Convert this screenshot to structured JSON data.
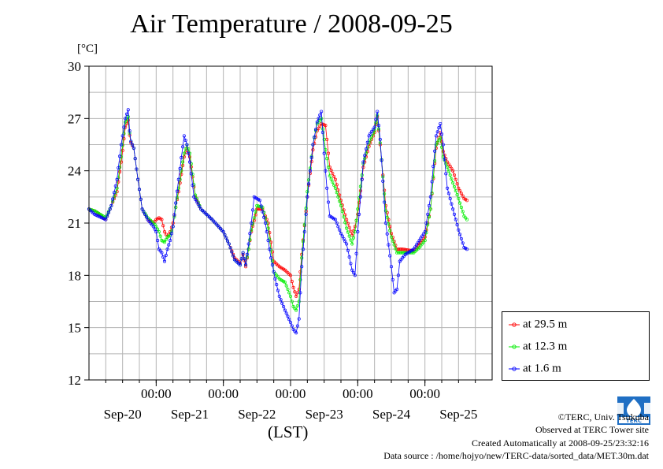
{
  "title": "Air Temperature / 2008-09-25",
  "y_unit": "[°C]",
  "x_unit": "(LST)",
  "legend": [
    {
      "label": "at 29.5 m",
      "color": "#ff0000"
    },
    {
      "label": "at 12.3 m",
      "color": "#00ee00"
    },
    {
      "label": "at 1.6 m",
      "color": "#0000ff"
    }
  ],
  "credits": {
    "copyright": "©TERC, Univ. Tsukuba",
    "observed": "Observed at TERC Tower site",
    "created": "Created Automatically at 2008-09-25/23:32:16",
    "source": "Data source : /home/hojyo/new/TERC-data/sorted_data/MET.30m.dat"
  },
  "logo_text": "TERC",
  "chart_data": {
    "type": "line",
    "x_unit": "hours since 2008-09-20 00:00 LST",
    "ylim": [
      12,
      30
    ],
    "y_ticks": [
      12,
      15,
      18,
      21,
      24,
      27,
      30
    ],
    "x_tick_labels": [
      "00:00",
      "00:00",
      "00:00",
      "00:00",
      "00:00"
    ],
    "x_tick_hours": [
      24,
      48,
      72,
      96,
      120
    ],
    "x_day_labels": [
      "Sep-20",
      "Sep-21",
      "Sep-22",
      "Sep-23",
      "Sep-24",
      "Sep-25"
    ],
    "x_day_label_hours": [
      12,
      36,
      60,
      84,
      108,
      132
    ],
    "xlim": [
      0,
      144
    ],
    "grid": true,
    "legend_position": "right-bottom",
    "series": [
      {
        "name": "at 29.5 m",
        "color": "#ff0000",
        "knots": [
          [
            0,
            21.8
          ],
          [
            2,
            21.7
          ],
          [
            6,
            21.2
          ],
          [
            8,
            22
          ],
          [
            10,
            22.8
          ],
          [
            11.5,
            24.5
          ],
          [
            13,
            26.5
          ],
          [
            14,
            26.9
          ],
          [
            14.7,
            25.7
          ],
          [
            16,
            25.3
          ],
          [
            17.5,
            23.5
          ],
          [
            19,
            21.8
          ],
          [
            21,
            21.2
          ],
          [
            23,
            21
          ],
          [
            24,
            21.2
          ],
          [
            25,
            21.3
          ],
          [
            26,
            21.2
          ],
          [
            27,
            20.5
          ],
          [
            28,
            20.2
          ],
          [
            29,
            20.5
          ],
          [
            30,
            21
          ],
          [
            32,
            22.8
          ],
          [
            34,
            24.8
          ],
          [
            35,
            25.3
          ],
          [
            36,
            24.8
          ],
          [
            38,
            22.5
          ],
          [
            40,
            21.8
          ],
          [
            44,
            21.2
          ],
          [
            48,
            20.5
          ],
          [
            50,
            19.8
          ],
          [
            52,
            19
          ],
          [
            54,
            18.7
          ],
          [
            55,
            19.2
          ],
          [
            56,
            18.5
          ],
          [
            57,
            19.5
          ],
          [
            58,
            20.5
          ],
          [
            60,
            21.8
          ],
          [
            62,
            21.8
          ],
          [
            64,
            21
          ],
          [
            66,
            18.8
          ],
          [
            68,
            18.5
          ],
          [
            70,
            18.3
          ],
          [
            72,
            18
          ],
          [
            73,
            17.3
          ],
          [
            74,
            16.8
          ],
          [
            75,
            17.2
          ],
          [
            76,
            19.2
          ],
          [
            78,
            22.5
          ],
          [
            80,
            25.2
          ],
          [
            81.5,
            26.3
          ],
          [
            83,
            26.7
          ],
          [
            84.5,
            26.6
          ],
          [
            86,
            24.2
          ],
          [
            88,
            23.5
          ],
          [
            90,
            22.3
          ],
          [
            92,
            21.2
          ],
          [
            94,
            20.3
          ],
          [
            95,
            20.8
          ],
          [
            96,
            21.5
          ],
          [
            98,
            24.2
          ],
          [
            100,
            25.4
          ],
          [
            102,
            26.2
          ],
          [
            103,
            27.1
          ],
          [
            104,
            25.5
          ],
          [
            106,
            22
          ],
          [
            108,
            20.4
          ],
          [
            110,
            19.5
          ],
          [
            112,
            19.5
          ],
          [
            116,
            19.4
          ],
          [
            118,
            19.8
          ],
          [
            120,
            20.2
          ],
          [
            122,
            21.8
          ],
          [
            124,
            25.3
          ],
          [
            125.5,
            26.2
          ],
          [
            126.5,
            25.1
          ],
          [
            128,
            24.5
          ],
          [
            130,
            24
          ],
          [
            132,
            23
          ],
          [
            134,
            22.4
          ],
          [
            135,
            22.3
          ]
        ]
      },
      {
        "name": "at 12.3 m",
        "color": "#00ee00",
        "knots": [
          [
            0,
            21.8
          ],
          [
            2,
            21.7
          ],
          [
            6,
            21.3
          ],
          [
            8,
            22
          ],
          [
            10,
            23
          ],
          [
            11.5,
            24.8
          ],
          [
            13,
            26.8
          ],
          [
            14,
            27.1
          ],
          [
            14.7,
            25.8
          ],
          [
            16,
            25.3
          ],
          [
            17.5,
            23.5
          ],
          [
            19,
            21.8
          ],
          [
            21,
            21.3
          ],
          [
            23,
            21
          ],
          [
            24,
            20.8
          ],
          [
            25,
            20.5
          ],
          [
            26,
            20
          ],
          [
            27,
            19.9
          ],
          [
            28,
            20.2
          ],
          [
            29,
            20.3
          ],
          [
            30,
            20.8
          ],
          [
            32,
            23
          ],
          [
            34,
            25
          ],
          [
            35,
            25.5
          ],
          [
            36,
            25
          ],
          [
            38,
            22.6
          ],
          [
            40,
            21.8
          ],
          [
            44,
            21.2
          ],
          [
            48,
            20.5
          ],
          [
            50,
            19.8
          ],
          [
            52,
            18.9
          ],
          [
            54,
            18.6
          ],
          [
            55,
            19.3
          ],
          [
            56,
            18.6
          ],
          [
            57,
            19.5
          ],
          [
            58,
            20.6
          ],
          [
            60,
            22
          ],
          [
            62,
            21.9
          ],
          [
            64,
            20.7
          ],
          [
            66,
            18.2
          ],
          [
            68,
            17.8
          ],
          [
            70,
            17.6
          ],
          [
            72,
            16.8
          ],
          [
            73,
            16.2
          ],
          [
            74,
            16
          ],
          [
            75,
            16.5
          ],
          [
            76,
            19
          ],
          [
            78,
            22.8
          ],
          [
            80,
            25.5
          ],
          [
            81.5,
            26.7
          ],
          [
            83,
            27
          ],
          [
            84.5,
            25.2
          ],
          [
            86,
            23.7
          ],
          [
            88,
            23
          ],
          [
            90,
            22
          ],
          [
            92,
            20.7
          ],
          [
            94,
            19.8
          ],
          [
            95,
            20.5
          ],
          [
            96,
            21.8
          ],
          [
            98,
            24.4
          ],
          [
            100,
            25.6
          ],
          [
            102,
            26.3
          ],
          [
            103,
            27.2
          ],
          [
            104,
            25.6
          ],
          [
            106,
            21.7
          ],
          [
            108,
            20.2
          ],
          [
            110,
            19.3
          ],
          [
            112,
            19.3
          ],
          [
            116,
            19.3
          ],
          [
            118,
            19.6
          ],
          [
            120,
            20
          ],
          [
            122,
            21.8
          ],
          [
            124,
            25.5
          ],
          [
            125.5,
            25.9
          ],
          [
            126.5,
            24.8
          ],
          [
            128,
            24.2
          ],
          [
            130,
            23.3
          ],
          [
            132,
            22.4
          ],
          [
            134,
            21.4
          ],
          [
            135,
            21.2
          ]
        ]
      },
      {
        "name": "at 1.6 m",
        "color": "#0000ff",
        "knots": [
          [
            0,
            21.8
          ],
          [
            2,
            21.5
          ],
          [
            6,
            21.2
          ],
          [
            8,
            22
          ],
          [
            10,
            23.5
          ],
          [
            11.5,
            25.5
          ],
          [
            13,
            27
          ],
          [
            14,
            27.5
          ],
          [
            14.7,
            25.8
          ],
          [
            16,
            25.3
          ],
          [
            17.5,
            23.5
          ],
          [
            19,
            21.8
          ],
          [
            21,
            21.2
          ],
          [
            23,
            20.8
          ],
          [
            24,
            20.5
          ],
          [
            25,
            19.5
          ],
          [
            26,
            19.3
          ],
          [
            27,
            18.8
          ],
          [
            28,
            19.5
          ],
          [
            29,
            20
          ],
          [
            30,
            20.8
          ],
          [
            32,
            23.5
          ],
          [
            34,
            26
          ],
          [
            35,
            25.5
          ],
          [
            36,
            24.5
          ],
          [
            37.5,
            22.5
          ],
          [
            40,
            21.8
          ],
          [
            44,
            21.2
          ],
          [
            48,
            20.5
          ],
          [
            50,
            19.8
          ],
          [
            52,
            18.9
          ],
          [
            54,
            18.6
          ],
          [
            55,
            19.3
          ],
          [
            56,
            18.6
          ],
          [
            57,
            19.8
          ],
          [
            58,
            21
          ],
          [
            59,
            22.5
          ],
          [
            61,
            22.3
          ],
          [
            63,
            21
          ],
          [
            65,
            19
          ],
          [
            66.5,
            17.8
          ],
          [
            68,
            16.8
          ],
          [
            70,
            16
          ],
          [
            72,
            15.3
          ],
          [
            73,
            14.9
          ],
          [
            74,
            14.7
          ],
          [
            75,
            15.5
          ],
          [
            76,
            18.5
          ],
          [
            78,
            22.5
          ],
          [
            80,
            25.5
          ],
          [
            81.5,
            26.8
          ],
          [
            83,
            27.4
          ],
          [
            84,
            25
          ],
          [
            85,
            23
          ],
          [
            86,
            21.4
          ],
          [
            88,
            21.2
          ],
          [
            90,
            20.4
          ],
          [
            92,
            19.8
          ],
          [
            94,
            18.3
          ],
          [
            95,
            18
          ],
          [
            96,
            20.5
          ],
          [
            98,
            24.5
          ],
          [
            100,
            26
          ],
          [
            102,
            26.5
          ],
          [
            103,
            27.4
          ],
          [
            104,
            25.8
          ],
          [
            106,
            21
          ],
          [
            108,
            18.5
          ],
          [
            109,
            17
          ],
          [
            110,
            17.2
          ],
          [
            111,
            18.8
          ],
          [
            113,
            19.2
          ],
          [
            116,
            19.5
          ],
          [
            118,
            20
          ],
          [
            120,
            20.5
          ],
          [
            122,
            22.5
          ],
          [
            124,
            26
          ],
          [
            125.5,
            26.7
          ],
          [
            126.5,
            25.5
          ],
          [
            128,
            23
          ],
          [
            130,
            21.8
          ],
          [
            132,
            20.6
          ],
          [
            134,
            19.6
          ],
          [
            135,
            19.5
          ]
        ]
      }
    ]
  }
}
